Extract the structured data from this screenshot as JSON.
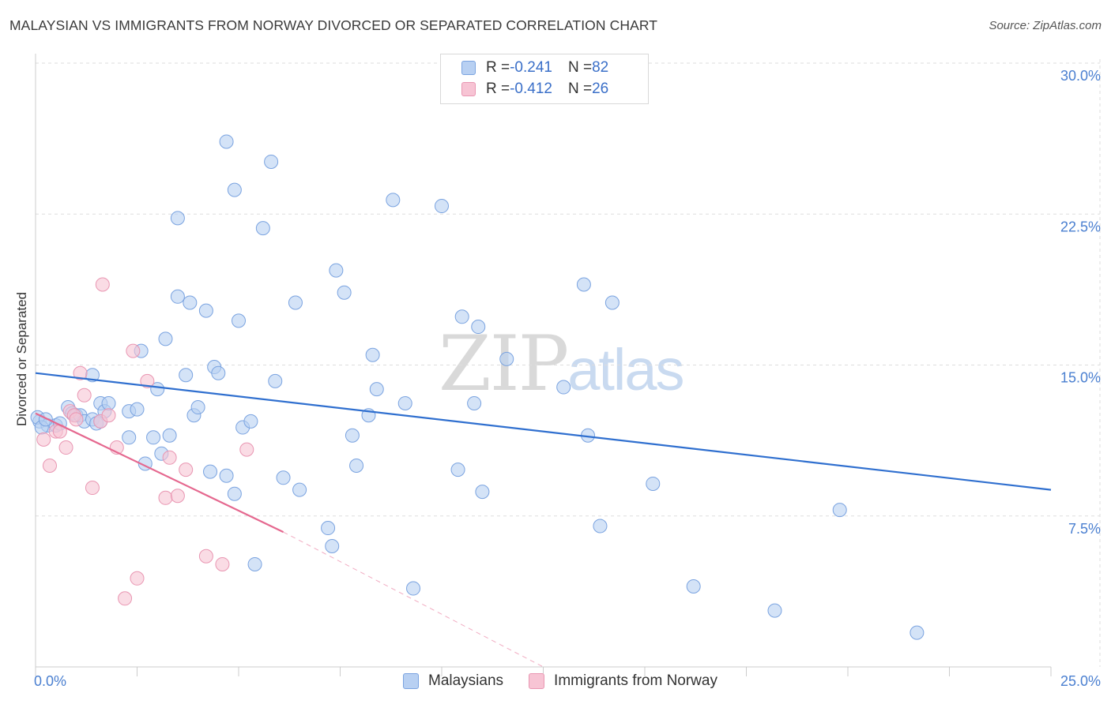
{
  "title": "MALAYSIAN VS IMMIGRANTS FROM NORWAY DIVORCED OR SEPARATED CORRELATION CHART",
  "source": "Source: ZipAtlas.com",
  "watermark": {
    "zip": "ZIP",
    "atlas": "atlas"
  },
  "legend": {
    "r_label": "R = ",
    "n_label": "N = ",
    "series": [
      {
        "name": "Malaysians",
        "r": "-0.241",
        "n": "82"
      },
      {
        "name": "Immigrants from Norway",
        "r": "-0.412",
        "n": "26"
      }
    ]
  },
  "colors": {
    "blue_fill": "#b8d0f2",
    "blue_stroke": "#7aa3e0",
    "blue_line": "#2f6fcf",
    "pink_fill": "#f7c4d4",
    "pink_stroke": "#e996b2",
    "pink_line": "#e5688f",
    "grid": "#dddddd",
    "axis": "#cccccc",
    "tick_text": "#4a7fd0"
  },
  "chart_data": {
    "type": "scatter",
    "title": "MALAYSIAN VS IMMIGRANTS FROM NORWAY DIVORCED OR SEPARATED CORRELATION CHART",
    "xlabel": "",
    "ylabel": "Divorced or Separated",
    "xlim": [
      0,
      25
    ],
    "ylim": [
      0,
      30
    ],
    "x_tick_labels": [
      "0.0%",
      "25.0%"
    ],
    "y_ticks": [
      7.5,
      15.0,
      22.5,
      30.0
    ],
    "y_tick_labels": [
      "7.5%",
      "15.0%",
      "22.5%",
      "30.0%"
    ],
    "grid": true,
    "series": [
      {
        "name": "Malaysians",
        "trend": {
          "x": [
            0,
            25
          ],
          "y": [
            14.6,
            8.8
          ],
          "style": "solid"
        },
        "points": [
          [
            0.1,
            12.2
          ],
          [
            0.3,
            12.0
          ],
          [
            0.5,
            12.0
          ],
          [
            0.6,
            12.1
          ],
          [
            0.8,
            12.9
          ],
          [
            0.9,
            12.6
          ],
          [
            1.0,
            12.5
          ],
          [
            1.1,
            12.5
          ],
          [
            1.2,
            12.2
          ],
          [
            1.4,
            12.3
          ],
          [
            1.5,
            12.1
          ],
          [
            1.6,
            12.2
          ],
          [
            1.4,
            14.5
          ],
          [
            1.6,
            13.1
          ],
          [
            1.7,
            12.7
          ],
          [
            1.8,
            13.1
          ],
          [
            2.3,
            12.7
          ],
          [
            2.5,
            12.8
          ],
          [
            2.3,
            11.4
          ],
          [
            2.6,
            15.7
          ],
          [
            2.7,
            10.1
          ],
          [
            2.9,
            11.4
          ],
          [
            3.0,
            13.8
          ],
          [
            3.1,
            10.6
          ],
          [
            3.2,
            16.3
          ],
          [
            3.3,
            11.5
          ],
          [
            3.5,
            22.3
          ],
          [
            3.5,
            18.4
          ],
          [
            3.7,
            14.5
          ],
          [
            3.8,
            18.1
          ],
          [
            3.9,
            12.5
          ],
          [
            4.0,
            12.9
          ],
          [
            4.2,
            17.7
          ],
          [
            4.3,
            9.7
          ],
          [
            4.4,
            14.9
          ],
          [
            4.5,
            14.6
          ],
          [
            4.7,
            9.5
          ],
          [
            4.7,
            26.1
          ],
          [
            4.9,
            23.7
          ],
          [
            4.9,
            8.6
          ],
          [
            5.0,
            17.2
          ],
          [
            5.1,
            11.9
          ],
          [
            5.3,
            12.2
          ],
          [
            5.4,
            5.1
          ],
          [
            5.6,
            21.8
          ],
          [
            5.8,
            25.1
          ],
          [
            5.9,
            14.2
          ],
          [
            6.1,
            9.4
          ],
          [
            6.4,
            18.1
          ],
          [
            6.5,
            8.8
          ],
          [
            7.2,
            6.9
          ],
          [
            7.3,
            6.0
          ],
          [
            7.4,
            19.7
          ],
          [
            7.6,
            18.6
          ],
          [
            7.8,
            11.5
          ],
          [
            7.9,
            10.0
          ],
          [
            8.2,
            12.5
          ],
          [
            8.3,
            15.5
          ],
          [
            8.4,
            13.8
          ],
          [
            8.8,
            23.2
          ],
          [
            9.1,
            13.1
          ],
          [
            9.3,
            3.9
          ],
          [
            10.0,
            22.9
          ],
          [
            10.4,
            9.8
          ],
          [
            10.5,
            17.4
          ],
          [
            10.8,
            13.1
          ],
          [
            10.9,
            16.9
          ],
          [
            11.0,
            8.7
          ],
          [
            11.6,
            15.3
          ],
          [
            13.0,
            13.9
          ],
          [
            13.5,
            19.0
          ],
          [
            13.6,
            11.5
          ],
          [
            13.9,
            7.0
          ],
          [
            14.2,
            18.1
          ],
          [
            15.2,
            9.1
          ],
          [
            16.2,
            4.0
          ],
          [
            18.2,
            2.8
          ],
          [
            19.8,
            7.8
          ],
          [
            21.7,
            1.7
          ],
          [
            0.05,
            12.4
          ],
          [
            0.15,
            11.9
          ],
          [
            0.25,
            12.3
          ]
        ]
      },
      {
        "name": "Immigrants from Norway",
        "trend": {
          "x": [
            0,
            6.1
          ],
          "y": [
            12.6,
            6.7
          ],
          "style": "solid",
          "extension": {
            "x": [
              6.1,
              12.5
            ],
            "y": [
              6.7,
              0.0
            ],
            "style": "dashed"
          }
        },
        "points": [
          [
            0.2,
            11.3
          ],
          [
            0.35,
            10.0
          ],
          [
            0.5,
            11.7
          ],
          [
            0.6,
            11.7
          ],
          [
            0.75,
            10.9
          ],
          [
            0.85,
            12.7
          ],
          [
            0.95,
            12.5
          ],
          [
            1.0,
            12.3
          ],
          [
            1.1,
            14.6
          ],
          [
            1.2,
            13.5
          ],
          [
            1.4,
            8.9
          ],
          [
            1.6,
            12.2
          ],
          [
            1.65,
            19.0
          ],
          [
            1.8,
            12.5
          ],
          [
            2.0,
            10.9
          ],
          [
            2.2,
            3.4
          ],
          [
            2.4,
            15.7
          ],
          [
            2.5,
            4.4
          ],
          [
            2.75,
            14.2
          ],
          [
            3.2,
            8.4
          ],
          [
            3.3,
            10.4
          ],
          [
            3.5,
            8.5
          ],
          [
            3.7,
            9.8
          ],
          [
            4.2,
            5.5
          ],
          [
            4.6,
            5.1
          ],
          [
            5.2,
            10.8
          ]
        ]
      }
    ]
  }
}
